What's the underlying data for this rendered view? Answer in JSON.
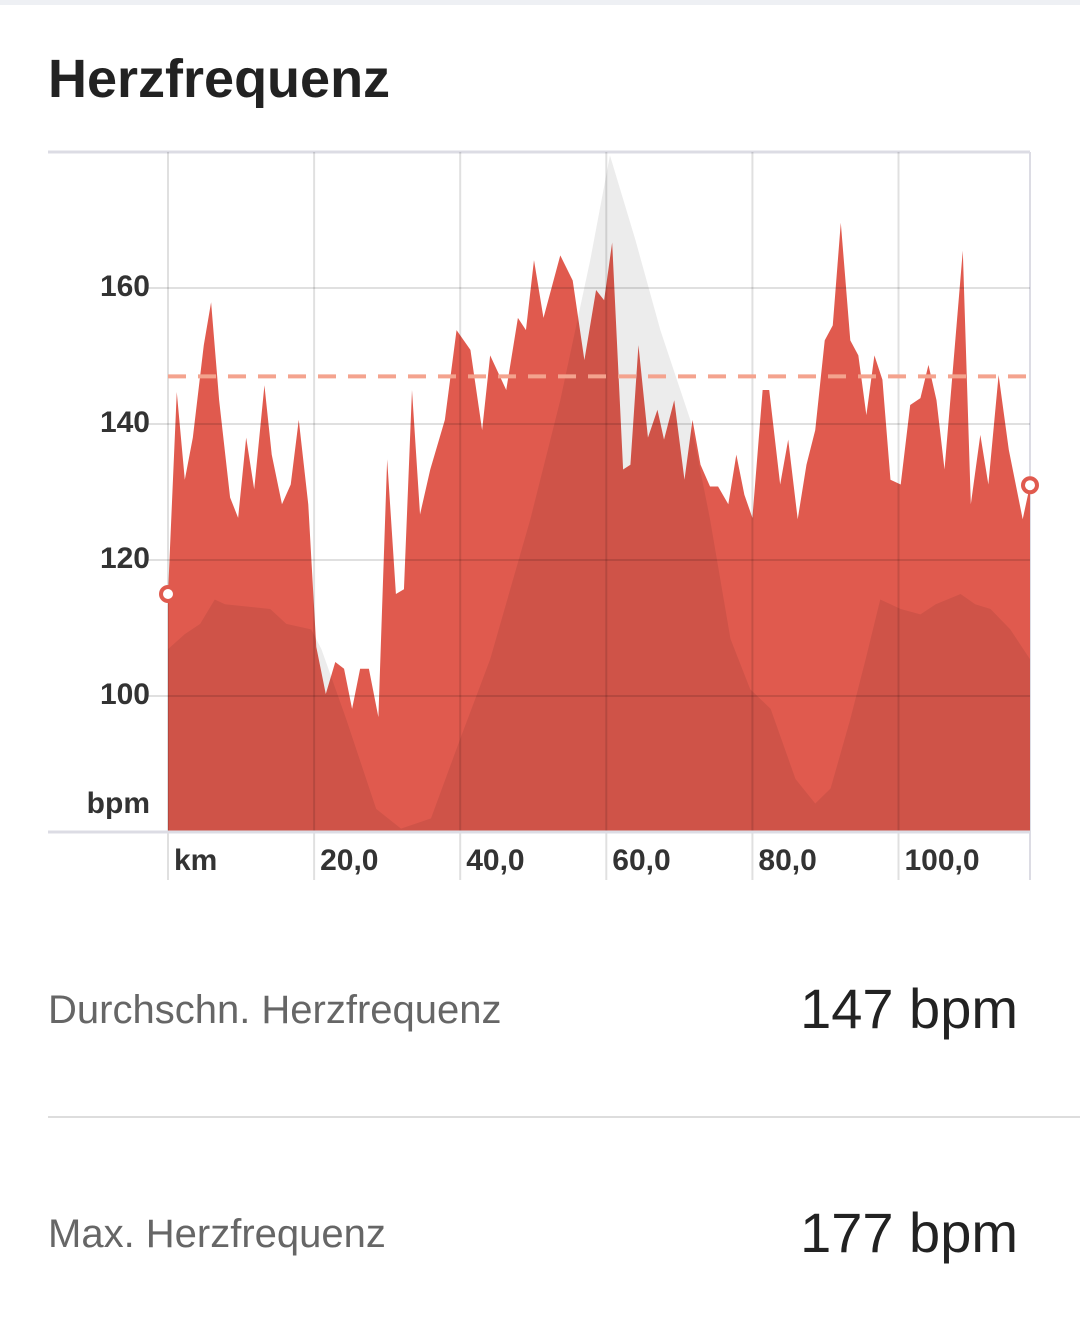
{
  "title": "Herzfrequenz",
  "chart_data": {
    "type": "area",
    "xlim": [
      0,
      118
    ],
    "ylim": [
      80,
      180
    ],
    "xticks": [
      {
        "value": 0,
        "label": "km"
      },
      {
        "value": 20,
        "label": "20,0"
      },
      {
        "value": 40,
        "label": "40,0"
      },
      {
        "value": 60,
        "label": "60,0"
      },
      {
        "value": 80,
        "label": "80,0"
      },
      {
        "value": 100,
        "label": "100,0"
      }
    ],
    "yticks": [
      100,
      120,
      140,
      160
    ],
    "y_unit": "bpm",
    "grid": true,
    "average": 147,
    "average_color": "#f4a38e",
    "series": [
      {
        "color": "#e05a4e",
        "x": [
          0,
          1.2,
          2.3,
          3.4,
          4.9,
          5.9,
          7.0,
          8.5,
          9.6,
          10.7,
          11.8,
          13.2,
          14.2,
          15.6,
          16.8,
          17.9,
          19.2,
          20.3,
          21.6,
          22.9,
          24.1,
          25.2,
          26.3,
          27.5,
          28.8,
          30.0,
          31.2,
          32.3,
          33.4,
          34.5,
          35.9,
          37.9,
          39.5,
          41.4,
          43.0,
          44.1,
          46.3,
          47.9,
          49.0,
          50.1,
          51.4,
          53.7,
          55.4,
          57.0,
          58.6,
          59.7,
          60.8,
          62.3,
          63.3,
          64.4,
          65.7,
          67.0,
          67.9,
          69.3,
          70.7,
          71.8,
          72.9,
          74.2,
          75.3,
          76.7,
          77.8,
          78.9,
          80.0,
          81.4,
          82.3,
          83.8,
          84.9,
          86.2,
          87.4,
          88.6,
          89.9,
          91.0,
          92.1,
          93.4,
          94.5,
          95.6,
          96.7,
          97.8,
          98.9,
          100.3,
          101.6,
          103.0,
          104.1,
          105.2,
          106.3,
          108.8,
          109.9,
          111.2,
          112.3,
          113.7,
          115.1,
          117.0,
          118
        ],
        "values": [
          115,
          144.7,
          131.8,
          138,
          151.6,
          157.9,
          143.5,
          129.2,
          126.2,
          138,
          130.4,
          145.7,
          135.5,
          128.2,
          131.1,
          140.6,
          128.2,
          107.2,
          100.3,
          105,
          104,
          98.1,
          104,
          104,
          96.9,
          134.8,
          115,
          115.7,
          145,
          126.7,
          133.3,
          140.6,
          153.8,
          150.9,
          139.1,
          150.1,
          145,
          155.6,
          153.8,
          164.1,
          155.6,
          164.8,
          161.1,
          149.4,
          159.7,
          158.2,
          166.7,
          133.3,
          134,
          151.6,
          138,
          142.1,
          137.7,
          143.5,
          131.8,
          140.6,
          134,
          130.8,
          130.8,
          128.2,
          135.5,
          129.6,
          126.2,
          145,
          145,
          131.1,
          137.7,
          126,
          134,
          139.1,
          152.3,
          154.5,
          169.6,
          152.3,
          150.1,
          141.3,
          150.1,
          146.5,
          131.8,
          131.1,
          142.8,
          143.8,
          148.7,
          143.5,
          133.3,
          165.5,
          128.2,
          138.4,
          131.1,
          147.2,
          136.2,
          126,
          131
        ]
      },
      {
        "color": "#ececec",
        "x": [
          0,
          2.3,
          4.4,
          6.4,
          7.8,
          14.0,
          16.2,
          19.6,
          21.0,
          24.4,
          28.5,
          31.9,
          36.0,
          40.0,
          44.1,
          49.6,
          53.7,
          57.8,
          60.5,
          64.0,
          67.4,
          71.5,
          74.2,
          77.0,
          79.7,
          82.5,
          85.9,
          88.6,
          90.7,
          93.4,
          95.5,
          97.5,
          100.3,
          103.0,
          105.1,
          108.5,
          110.5,
          112.6,
          115.3,
          118
        ],
        "values": [
          106.9,
          109.1,
          110.6,
          114.2,
          113.5,
          112.8,
          110.6,
          109.8,
          106.9,
          96.6,
          83.4,
          80.5,
          82.0,
          93.7,
          105.4,
          126.0,
          143.5,
          164.1,
          179.5,
          167.0,
          153.8,
          140.6,
          126.0,
          108.4,
          101.0,
          98.1,
          87.8,
          84.2,
          86.4,
          96.6,
          105.4,
          114.2,
          112.8,
          112.0,
          113.5,
          115.0,
          113.5,
          112.8,
          109.8,
          105.4
        ]
      }
    ]
  },
  "stats": [
    {
      "label": "Durchschn. Herzfrequenz",
      "value": "147 bpm"
    },
    {
      "label": "Max. Herzfrequenz",
      "value": "177 bpm"
    }
  ]
}
